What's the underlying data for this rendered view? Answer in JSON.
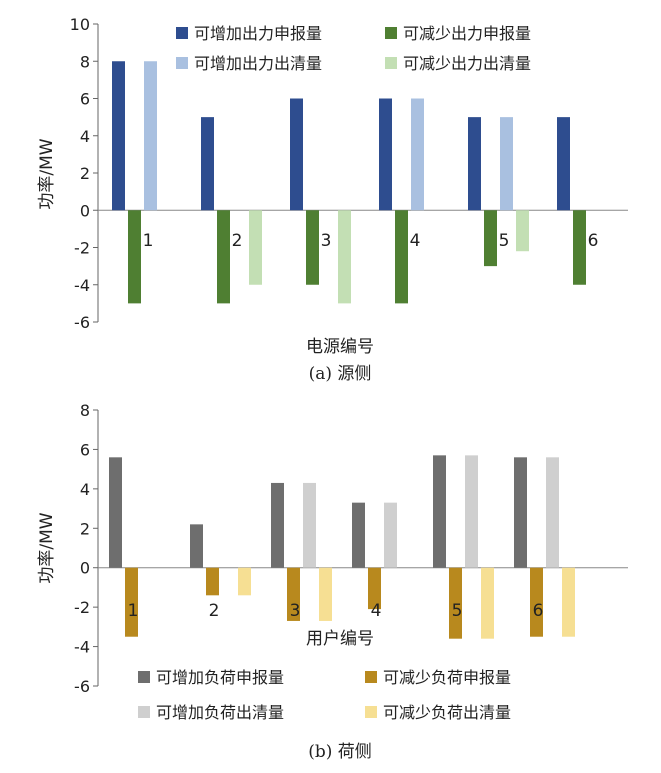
{
  "charts": [
    {
      "id": "a",
      "chart_data": {
        "type": "bar",
        "categories": [
          "1",
          "2",
          "3",
          "4",
          "5",
          "6"
        ],
        "series": [
          {
            "name": "可增加出力申报量",
            "color": "#2e4d8f",
            "values": [
              8,
              5,
              6,
              6,
              5,
              5
            ]
          },
          {
            "name": "可减少出力申报量",
            "color": "#4f7f32",
            "values": [
              -5,
              -5,
              -4,
              -5,
              -3,
              -4
            ]
          },
          {
            "name": "可增加出力出清量",
            "color": "#a9c0e0",
            "values": [
              8,
              0,
              0,
              6,
              5,
              0
            ]
          },
          {
            "name": "可减少出力出清量",
            "color": "#c3dfb4",
            "values": [
              0,
              -4,
              -5,
              0,
              -2.2,
              0
            ]
          }
        ],
        "xlabel": "电源编号",
        "ylabel": "功率/MW",
        "ylim": [
          -6,
          10
        ],
        "yticks": [
          10,
          8,
          6,
          4,
          2,
          0,
          -2,
          -4,
          -6
        ],
        "grid": false,
        "legend_position": "top"
      },
      "caption": "(a) 源侧"
    },
    {
      "id": "b",
      "chart_data": {
        "type": "bar",
        "categories": [
          "1",
          "2",
          "3",
          "4",
          "5",
          "6"
        ],
        "series": [
          {
            "name": "可增加负荷申报量",
            "color": "#6e6e6e",
            "values": [
              5.6,
              2.2,
              4.3,
              3.3,
              5.7,
              5.6
            ]
          },
          {
            "name": "可减少负荷申报量",
            "color": "#b8891e",
            "values": [
              -3.5,
              -1.4,
              -2.7,
              -2.1,
              -3.6,
              -3.5
            ]
          },
          {
            "name": "可增加负荷出清量",
            "color": "#cfcfcf",
            "values": [
              0,
              0,
              4.3,
              3.3,
              5.7,
              5.6
            ]
          },
          {
            "name": "可减少负荷出清量",
            "color": "#f6df93",
            "values": [
              0,
              -1.4,
              -2.7,
              0,
              -3.6,
              -3.5
            ]
          }
        ],
        "xlabel": "用户编号",
        "ylabel": "功率/MW",
        "ylim": [
          -6,
          8
        ],
        "yticks": [
          8,
          6,
          4,
          2,
          0,
          -2,
          -4,
          -6
        ],
        "grid": false,
        "legend_position": "bottom"
      },
      "caption": "(b) 荷侧"
    }
  ]
}
